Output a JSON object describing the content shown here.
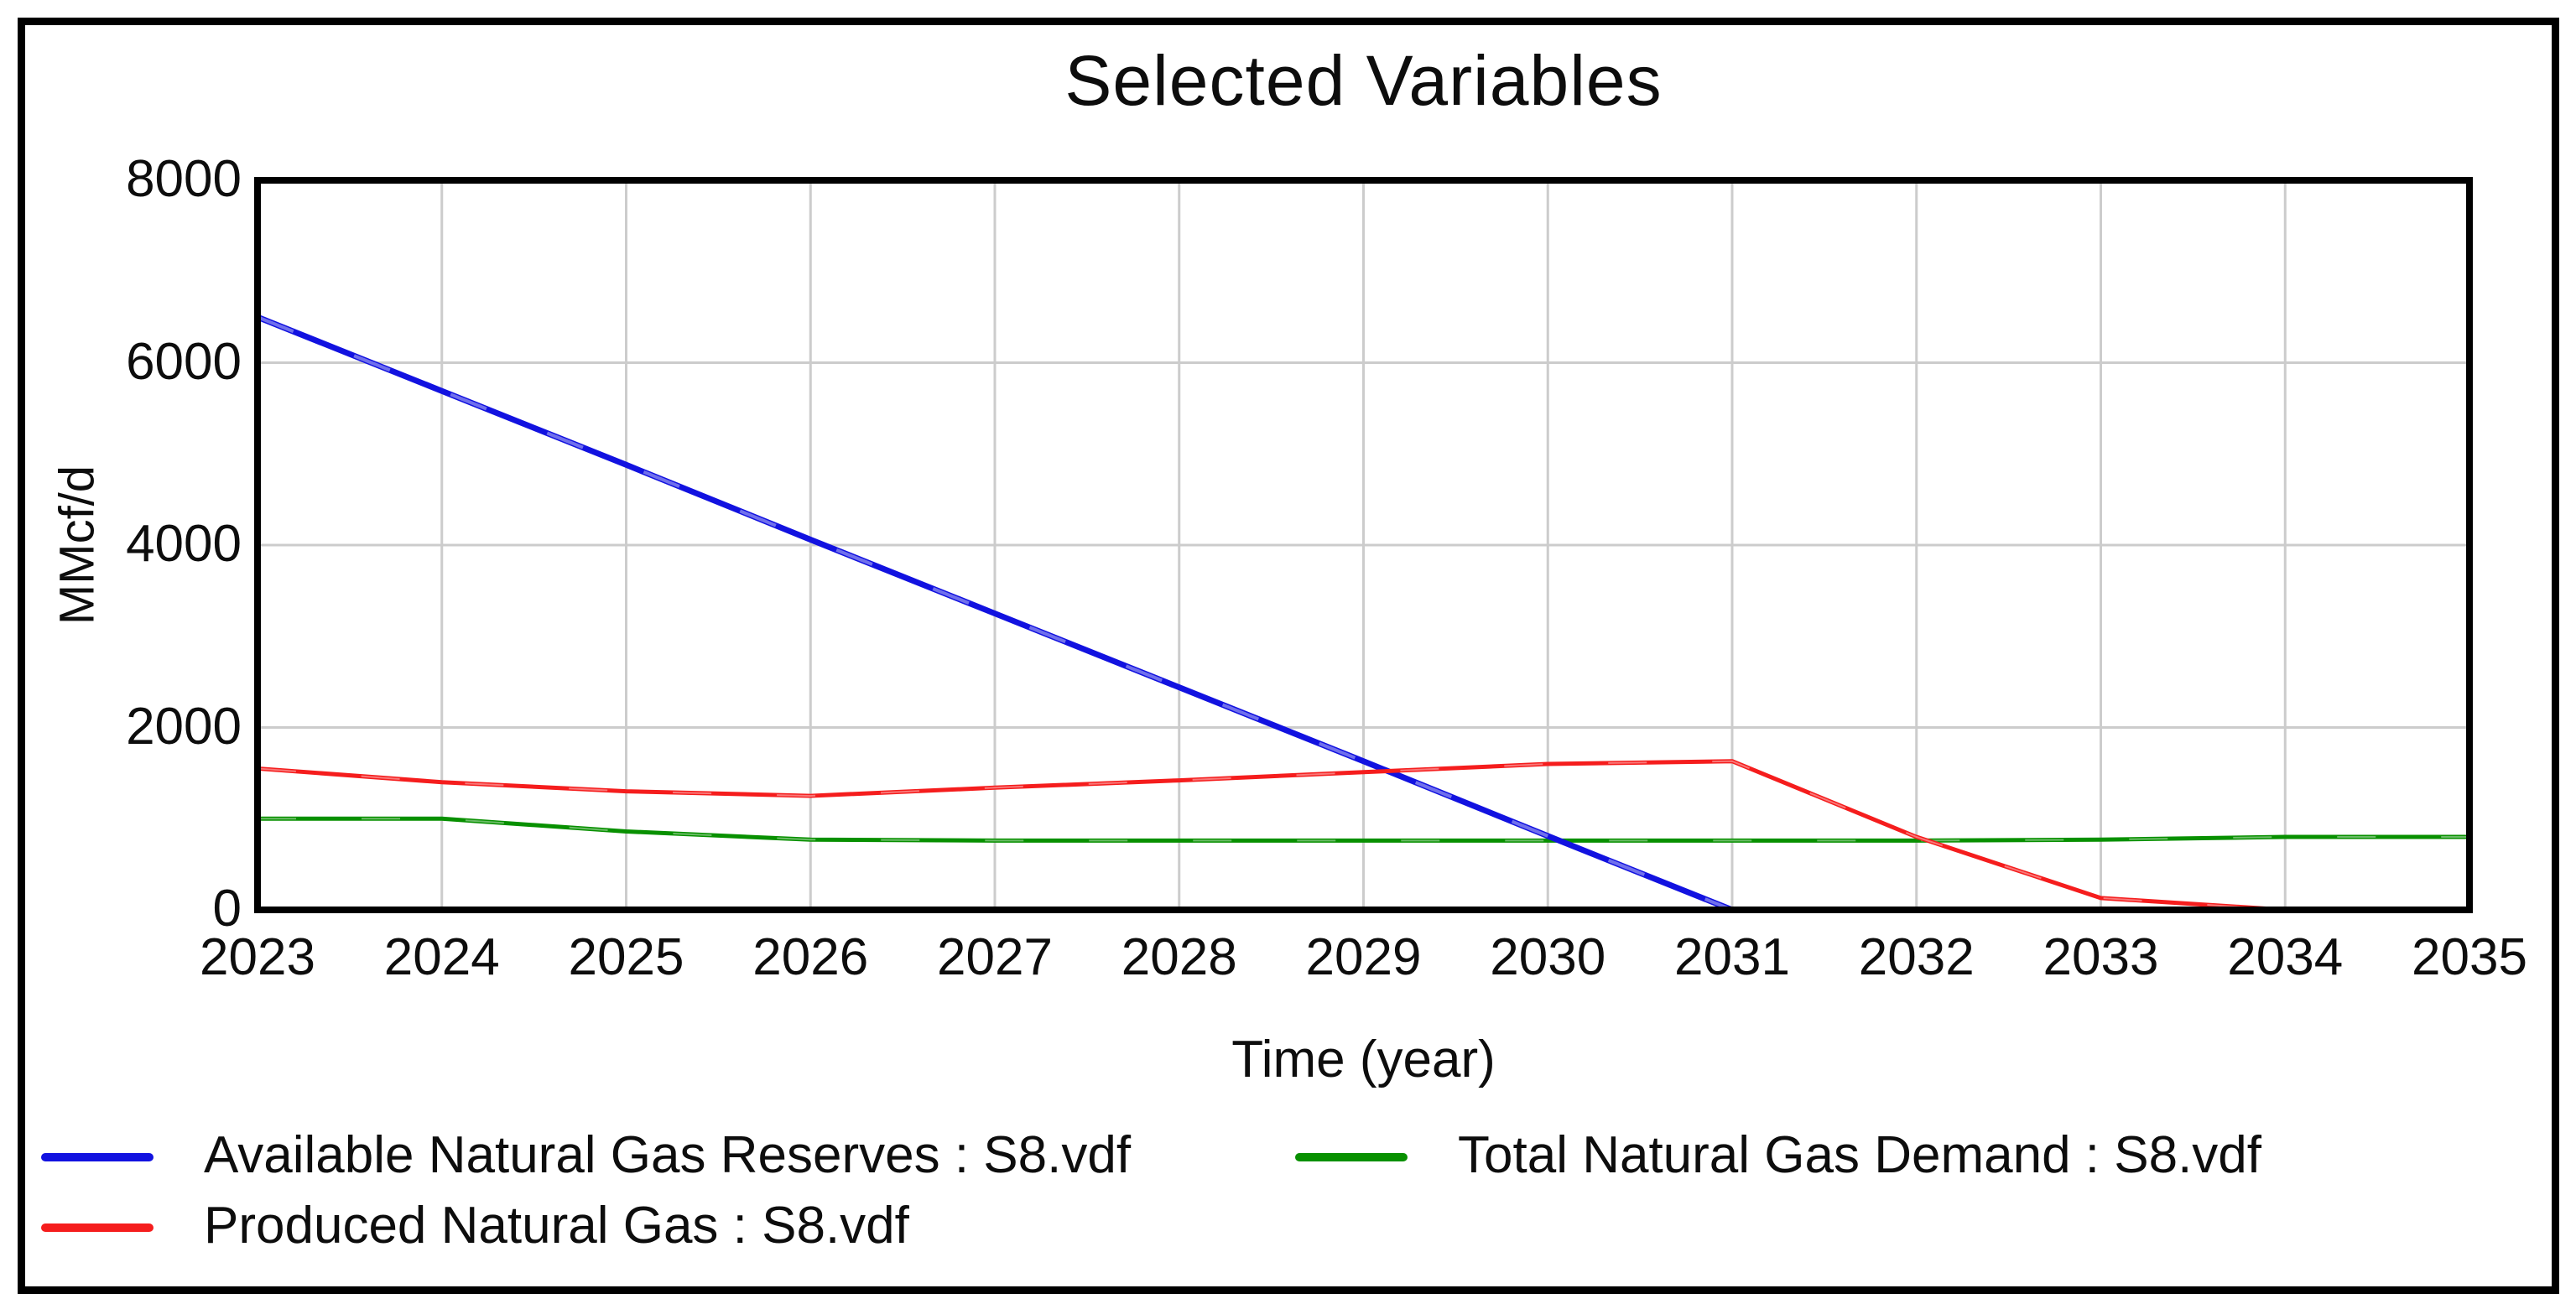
{
  "chart_data": {
    "type": "line",
    "title": "Selected Variables",
    "xlabel": "Time (year)",
    "ylabel": "MMcf/d",
    "xlim": [
      2023,
      2035
    ],
    "ylim": [
      0,
      8000
    ],
    "yticks": [
      0,
      2000,
      4000,
      6000,
      8000
    ],
    "categories": [
      2023,
      2024,
      2025,
      2026,
      2027,
      2028,
      2029,
      2030,
      2031,
      2032,
      2033,
      2034,
      2035
    ],
    "grid": true,
    "grid_color": "#cccccc",
    "frame_color": "#000000",
    "legend_position": "bottom",
    "series": [
      {
        "name": "Available Natural Gas Reserves",
        "legend_label": "Available Natural Gas Reserves : S8.vdf",
        "color": "#1212e0",
        "values": [
          6500,
          5690,
          4880,
          4060,
          3250,
          2440,
          1630,
          810,
          0,
          0,
          0,
          0,
          0
        ]
      },
      {
        "name": "Produced Natural Gas",
        "legend_label": "Produced Natural Gas : S8.vdf",
        "color": "#f51d1d",
        "values": [
          1550,
          1400,
          1300,
          1250,
          1340,
          1420,
          1510,
          1600,
          1630,
          800,
          130,
          0,
          0
        ]
      },
      {
        "name": "Total Natural Gas Demand",
        "legend_label": "Total Natural Gas Demand : S8.vdf",
        "color": "#089000",
        "values": [
          1000,
          1000,
          860,
          770,
          760,
          760,
          760,
          760,
          760,
          760,
          770,
          800,
          800
        ]
      }
    ]
  }
}
